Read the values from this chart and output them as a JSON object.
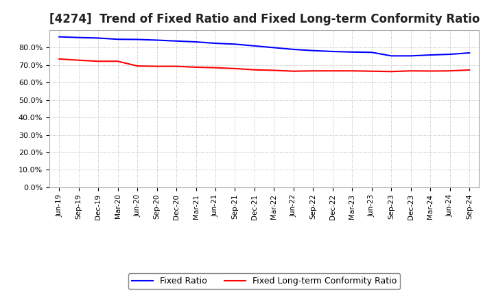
{
  "title": "[4274]  Trend of Fixed Ratio and Fixed Long-term Conformity Ratio",
  "title_fontsize": 12,
  "background_color": "#ffffff",
  "grid_color": "#aaaaaa",
  "x_labels": [
    "Jun-19",
    "Sep-19",
    "Dec-19",
    "Mar-20",
    "Jun-20",
    "Sep-20",
    "Dec-20",
    "Mar-21",
    "Jun-21",
    "Sep-21",
    "Dec-21",
    "Mar-22",
    "Jun-22",
    "Sep-22",
    "Dec-22",
    "Mar-23",
    "Jun-23",
    "Sep-23",
    "Dec-23",
    "Mar-24",
    "Jun-24",
    "Sep-24"
  ],
  "fixed_ratio": [
    0.862,
    0.858,
    0.855,
    0.848,
    0.847,
    0.843,
    0.838,
    0.833,
    0.825,
    0.82,
    0.81,
    0.8,
    0.79,
    0.783,
    0.778,
    0.775,
    0.773,
    0.753,
    0.753,
    0.758,
    0.762,
    0.77
  ],
  "fixed_lt_ratio": [
    0.735,
    0.728,
    0.722,
    0.722,
    0.695,
    0.693,
    0.693,
    0.688,
    0.685,
    0.68,
    0.673,
    0.67,
    0.665,
    0.667,
    0.667,
    0.667,
    0.665,
    0.663,
    0.667,
    0.666,
    0.667,
    0.672
  ],
  "fixed_ratio_color": "#0000ff",
  "fixed_lt_ratio_color": "#ff0000",
  "ylim": [
    0.0,
    0.9
  ],
  "yticks": [
    0.0,
    0.1,
    0.2,
    0.3,
    0.4,
    0.5,
    0.6,
    0.7,
    0.8
  ],
  "legend_fixed_ratio": "Fixed Ratio",
  "legend_fixed_lt_ratio": "Fixed Long-term Conformity Ratio"
}
